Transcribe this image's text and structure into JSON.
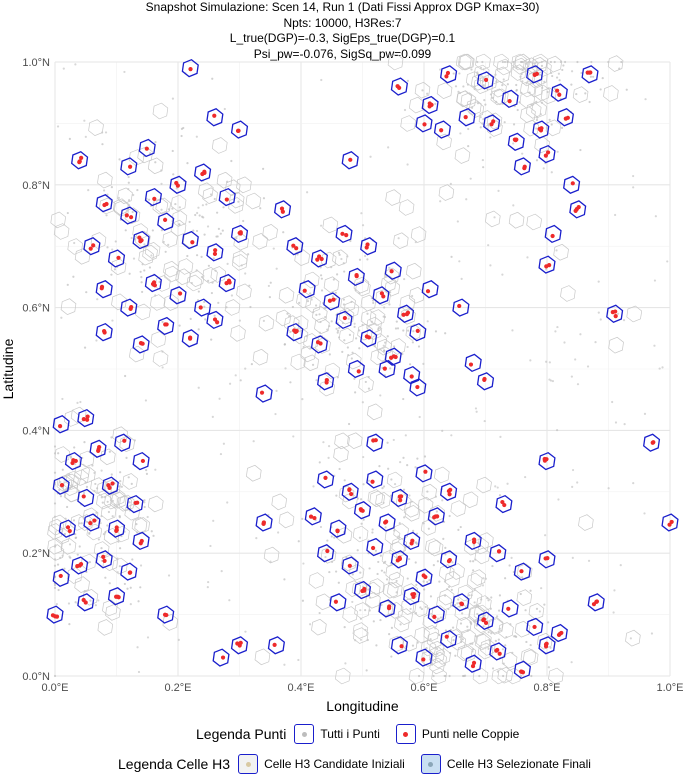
{
  "title_lines": [
    "Snapshot Simulazione: Scen 14, Run 1 (Dati Fissi Approx DGP Kmax=30)",
    "Npts: 10000, H3Res:7",
    "L_true(DGP)=-0.3, SigEps_true(DGP)=0.1",
    "Psi_pw=-0.076, SigSq_pw=0.099"
  ],
  "colors": {
    "panel_bg": "#ffffff",
    "grid": "#e6e6e6",
    "candidate_hex": "#c8c8c8",
    "selected_hex": "#1a1fcc",
    "all_points": "#bdbdbd",
    "pair_points": "#ee2a2a",
    "legend_candidate_fill": "#f2f2f2",
    "legend_selected_fill": "#c9dff2"
  },
  "legend": {
    "points_title": "Legenda Punti",
    "points_items": [
      {
        "label": "Tutti i Punti",
        "dot_color": "#bdbdbd",
        "fill": "#ffffff"
      },
      {
        "label": "Punti nelle Coppie",
        "dot_color": "#ee2a2a",
        "fill": "#ffffff"
      }
    ],
    "cells_title": "Legenda Celle H3",
    "cells_items": [
      {
        "label": "Celle H3 Candidate Iniziali",
        "dot_color": "#d9c9a3",
        "fill": "#f2f2f2"
      },
      {
        "label": "Celle H3 Selezionate Finali",
        "dot_color": "#8aa6b8",
        "fill": "#c9dff2"
      }
    ]
  },
  "chart_data": {
    "type": "scatter",
    "xlabel": "Longitudine",
    "ylabel": "Latitudine",
    "xlim": [
      0.0,
      1.0
    ],
    "ylim": [
      0.0,
      1.0
    ],
    "x_ticks": [
      0.0,
      0.2,
      0.4,
      0.6,
      0.8,
      1.0
    ],
    "x_tick_labels": [
      "0.0°E",
      "0.2°E",
      "0.4°E",
      "0.6°E",
      "0.8°E",
      "1.0°E"
    ],
    "y_ticks": [
      0.0,
      0.2,
      0.4,
      0.6,
      0.8,
      1.0
    ],
    "y_tick_labels": [
      "0.0°N",
      "0.2°N",
      "0.4°N",
      "0.6°N",
      "0.8°N",
      "1.0°N"
    ],
    "grid": true,
    "legend_position": "bottom",
    "clusters": [
      {
        "cx": 0.2,
        "cy": 0.72,
        "rx": 0.13,
        "ry": 0.16
      },
      {
        "cx": 0.48,
        "cy": 0.58,
        "rx": 0.1,
        "ry": 0.11
      },
      {
        "cx": 0.75,
        "cy": 0.96,
        "rx": 0.12,
        "ry": 0.09
      },
      {
        "cx": 0.06,
        "cy": 0.26,
        "rx": 0.09,
        "ry": 0.14
      },
      {
        "cx": 0.55,
        "cy": 0.2,
        "rx": 0.12,
        "ry": 0.14
      },
      {
        "cx": 0.68,
        "cy": 0.08,
        "rx": 0.1,
        "ry": 0.09
      }
    ],
    "selected_hexes": [
      [
        0.04,
        0.84
      ],
      [
        0.12,
        0.83
      ],
      [
        0.15,
        0.86
      ],
      [
        0.22,
        0.99
      ],
      [
        0.26,
        0.91
      ],
      [
        0.3,
        0.89
      ],
      [
        0.08,
        0.77
      ],
      [
        0.12,
        0.75
      ],
      [
        0.16,
        0.78
      ],
      [
        0.2,
        0.8
      ],
      [
        0.24,
        0.82
      ],
      [
        0.28,
        0.78
      ],
      [
        0.06,
        0.7
      ],
      [
        0.1,
        0.68
      ],
      [
        0.14,
        0.71
      ],
      [
        0.18,
        0.74
      ],
      [
        0.22,
        0.71
      ],
      [
        0.26,
        0.69
      ],
      [
        0.3,
        0.72
      ],
      [
        0.08,
        0.63
      ],
      [
        0.12,
        0.6
      ],
      [
        0.16,
        0.64
      ],
      [
        0.2,
        0.62
      ],
      [
        0.24,
        0.6
      ],
      [
        0.28,
        0.64
      ],
      [
        0.08,
        0.56
      ],
      [
        0.14,
        0.54
      ],
      [
        0.18,
        0.57
      ],
      [
        0.22,
        0.55
      ],
      [
        0.26,
        0.58
      ],
      [
        0.37,
        0.76
      ],
      [
        0.39,
        0.7
      ],
      [
        0.43,
        0.68
      ],
      [
        0.47,
        0.72
      ],
      [
        0.51,
        0.7
      ],
      [
        0.55,
        0.66
      ],
      [
        0.41,
        0.63
      ],
      [
        0.45,
        0.61
      ],
      [
        0.49,
        0.65
      ],
      [
        0.53,
        0.62
      ],
      [
        0.57,
        0.59
      ],
      [
        0.61,
        0.63
      ],
      [
        0.39,
        0.56
      ],
      [
        0.43,
        0.54
      ],
      [
        0.47,
        0.58
      ],
      [
        0.51,
        0.55
      ],
      [
        0.55,
        0.52
      ],
      [
        0.59,
        0.56
      ],
      [
        0.44,
        0.48
      ],
      [
        0.49,
        0.5
      ],
      [
        0.54,
        0.5
      ],
      [
        0.58,
        0.49
      ],
      [
        0.34,
        0.46
      ],
      [
        0.59,
        0.47
      ],
      [
        0.48,
        0.84
      ],
      [
        0.7,
        0.48
      ],
      [
        0.68,
        0.51
      ],
      [
        0.66,
        0.6
      ],
      [
        0.56,
        0.96
      ],
      [
        0.61,
        0.93
      ],
      [
        0.64,
        0.98
      ],
      [
        0.7,
        0.97
      ],
      [
        0.74,
        0.94
      ],
      [
        0.78,
        0.98
      ],
      [
        0.82,
        0.95
      ],
      [
        0.63,
        0.89
      ],
      [
        0.67,
        0.91
      ],
      [
        0.71,
        0.9
      ],
      [
        0.75,
        0.87
      ],
      [
        0.79,
        0.89
      ],
      [
        0.83,
        0.91
      ],
      [
        0.6,
        0.9
      ],
      [
        0.76,
        0.83
      ],
      [
        0.8,
        0.85
      ],
      [
        0.84,
        0.8
      ],
      [
        0.85,
        0.76
      ],
      [
        0.81,
        0.72
      ],
      [
        0.8,
        0.67
      ],
      [
        0.91,
        0.59
      ],
      [
        0.87,
        0.98
      ],
      [
        0.97,
        0.38
      ],
      [
        1.0,
        0.25
      ],
      [
        0.8,
        0.35
      ],
      [
        0.01,
        0.41
      ],
      [
        0.05,
        0.42
      ],
      [
        0.03,
        0.35
      ],
      [
        0.07,
        0.37
      ],
      [
        0.11,
        0.38
      ],
      [
        0.14,
        0.35
      ],
      [
        0.01,
        0.31
      ],
      [
        0.05,
        0.29
      ],
      [
        0.09,
        0.31
      ],
      [
        0.13,
        0.28
      ],
      [
        0.02,
        0.24
      ],
      [
        0.06,
        0.25
      ],
      [
        0.1,
        0.24
      ],
      [
        0.14,
        0.22
      ],
      [
        0.04,
        0.18
      ],
      [
        0.08,
        0.19
      ],
      [
        0.12,
        0.17
      ],
      [
        0.01,
        0.16
      ],
      [
        0.05,
        0.12
      ],
      [
        0.1,
        0.13
      ],
      [
        0.0,
        0.1
      ],
      [
        0.18,
        0.1
      ],
      [
        0.3,
        0.05
      ],
      [
        0.36,
        0.05
      ],
      [
        0.27,
        0.03
      ],
      [
        0.34,
        0.25
      ],
      [
        0.44,
        0.32
      ],
      [
        0.48,
        0.3
      ],
      [
        0.52,
        0.32
      ],
      [
        0.56,
        0.29
      ],
      [
        0.6,
        0.33
      ],
      [
        0.64,
        0.3
      ],
      [
        0.42,
        0.26
      ],
      [
        0.46,
        0.24
      ],
      [
        0.5,
        0.27
      ],
      [
        0.54,
        0.25
      ],
      [
        0.58,
        0.22
      ],
      [
        0.62,
        0.26
      ],
      [
        0.44,
        0.2
      ],
      [
        0.48,
        0.18
      ],
      [
        0.52,
        0.21
      ],
      [
        0.56,
        0.19
      ],
      [
        0.6,
        0.16
      ],
      [
        0.64,
        0.19
      ],
      [
        0.68,
        0.22
      ],
      [
        0.72,
        0.2
      ],
      [
        0.76,
        0.17
      ],
      [
        0.8,
        0.19
      ],
      [
        0.46,
        0.12
      ],
      [
        0.5,
        0.14
      ],
      [
        0.54,
        0.11
      ],
      [
        0.58,
        0.13
      ],
      [
        0.62,
        0.1
      ],
      [
        0.66,
        0.12
      ],
      [
        0.7,
        0.09
      ],
      [
        0.74,
        0.11
      ],
      [
        0.78,
        0.08
      ],
      [
        0.82,
        0.07
      ],
      [
        0.88,
        0.12
      ],
      [
        0.56,
        0.05
      ],
      [
        0.6,
        0.03
      ],
      [
        0.64,
        0.06
      ],
      [
        0.68,
        0.02
      ],
      [
        0.72,
        0.04
      ],
      [
        0.76,
        0.01
      ],
      [
        0.8,
        0.05
      ],
      [
        0.73,
        0.28
      ],
      [
        0.52,
        0.38
      ]
    ]
  }
}
